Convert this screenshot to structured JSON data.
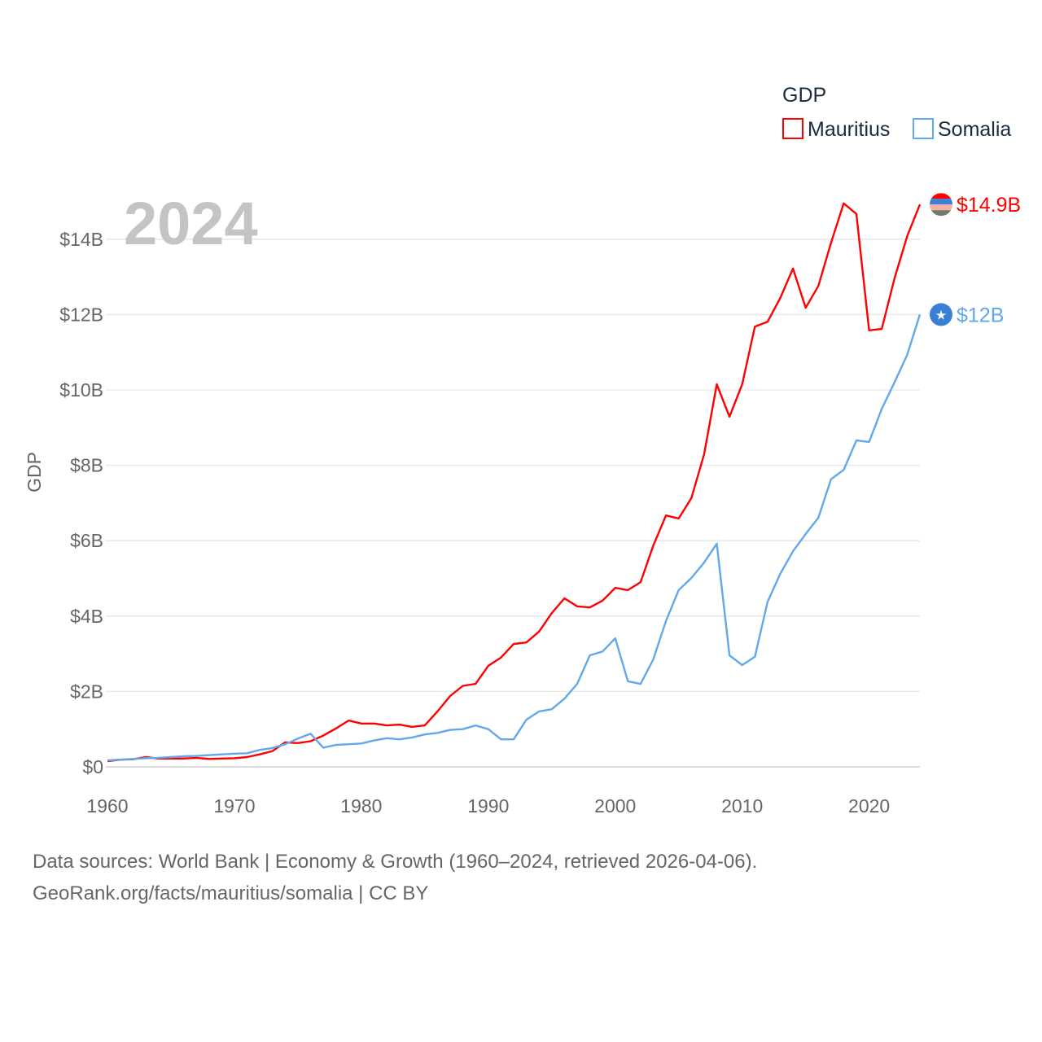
{
  "chart_data": {
    "type": "line",
    "title": "2024",
    "ylabel": "GDP",
    "xlabel": "",
    "legend": {
      "title": "GDP",
      "placement": "top-right",
      "entries": [
        "Mauritius",
        "Somalia"
      ]
    },
    "xlim": [
      1960,
      2024
    ],
    "ylim": [
      0,
      16
    ],
    "x_ticks": [
      1960,
      1970,
      1980,
      1990,
      2000,
      2010,
      2020
    ],
    "x_tick_labels": [
      "1960",
      "1970",
      "1980",
      "1990",
      "2000",
      "2010",
      "2020"
    ],
    "y_ticks": [
      0,
      2,
      4,
      6,
      8,
      10,
      12,
      14
    ],
    "y_tick_labels": [
      "$0",
      "$2B",
      "$4B",
      "$6B",
      "$8B",
      "$10B",
      "$12B",
      "$14B"
    ],
    "x_start": 1960,
    "series": [
      {
        "name": "Mauritius",
        "color": "#ff0000",
        "end_label": "$14.9B",
        "flag": "mauritius-flag",
        "values": [
          0.15,
          0.19,
          0.2,
          0.26,
          0.22,
          0.22,
          0.22,
          0.24,
          0.21,
          0.22,
          0.23,
          0.26,
          0.33,
          0.42,
          0.65,
          0.63,
          0.68,
          0.83,
          1.02,
          1.23,
          1.15,
          1.15,
          1.1,
          1.12,
          1.06,
          1.1,
          1.47,
          1.88,
          2.15,
          2.2,
          2.68,
          2.9,
          3.26,
          3.3,
          3.59,
          4.08,
          4.47,
          4.26,
          4.23,
          4.41,
          4.75,
          4.69,
          4.9,
          5.87,
          6.67,
          6.59,
          7.13,
          8.29,
          10.15,
          9.29,
          10.15,
          11.68,
          11.81,
          12.44,
          13.22,
          12.18,
          12.76,
          13.9,
          14.95,
          14.67,
          11.58,
          11.62,
          12.96,
          14.08,
          14.92
        ]
      },
      {
        "name": "Somalia",
        "color": "#62a8ea",
        "end_label": "$12B",
        "flag": "somalia-flag",
        "values": [
          0.17,
          0.19,
          0.21,
          0.23,
          0.24,
          0.26,
          0.28,
          0.29,
          0.31,
          0.33,
          0.35,
          0.36,
          0.45,
          0.5,
          0.6,
          0.75,
          0.88,
          0.51,
          0.58,
          0.6,
          0.62,
          0.7,
          0.76,
          0.73,
          0.78,
          0.86,
          0.9,
          0.98,
          1.0,
          1.1,
          1.0,
          0.73,
          0.73,
          1.25,
          1.47,
          1.53,
          1.81,
          2.2,
          2.96,
          3.06,
          3.41,
          2.27,
          2.2,
          2.85,
          3.87,
          4.69,
          5.01,
          5.42,
          5.92,
          2.96,
          2.7,
          2.92,
          4.38,
          5.12,
          5.72,
          6.18,
          6.61,
          7.63,
          7.88,
          8.66,
          8.62,
          9.5,
          10.2,
          10.93,
          12.0
        ]
      }
    ]
  },
  "footer": {
    "line1": "Data sources: World Bank | Economy & Growth (1960–2024, retrieved 2026-04-06).",
    "line2": "GeoRank.org/facts/mauritius/somalia | CC BY"
  }
}
